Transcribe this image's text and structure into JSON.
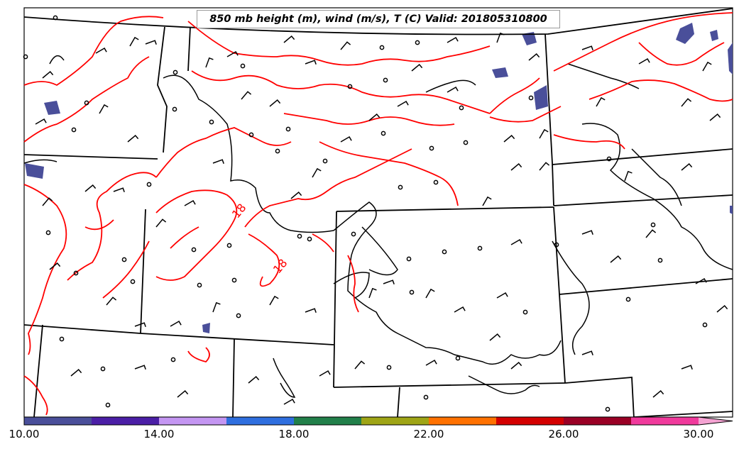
{
  "title": "850 mb height (m), wind (m/s), T (C) Valid: 201805310800",
  "contour_labels": [
    "18",
    "18"
  ],
  "colorbar": {
    "tick_labels": [
      "10.00",
      "14.00",
      "18.00",
      "22.00",
      "26.00",
      "30.00"
    ],
    "colors": [
      "#4a4f9a",
      "#4b1fa6",
      "#c496f2",
      "#2f6fdf",
      "#22804a",
      "#9fa516",
      "#ff7100",
      "#d40000",
      "#9a0025",
      "#f03a9c",
      "#f4a3d2"
    ]
  },
  "colors": {
    "temperature_contour": "#ff0000",
    "height_contour": "#000000",
    "state_borders": "#000000",
    "wind_fill": "#4a4f9a"
  }
}
